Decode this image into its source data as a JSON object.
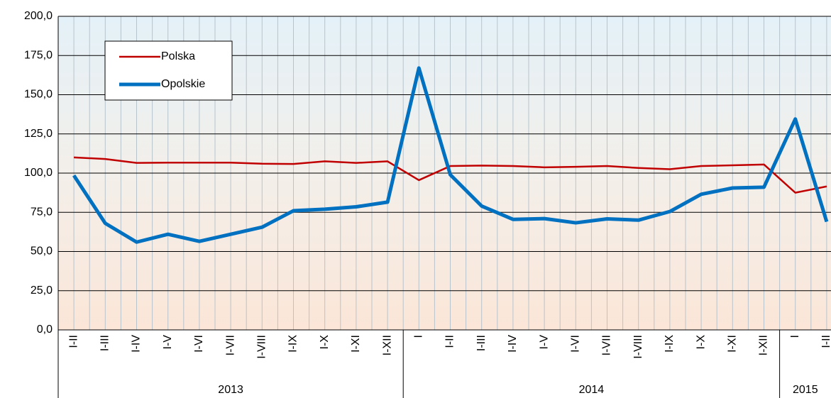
{
  "chart_data": {
    "type": "line",
    "categories": [
      "I-II",
      "I-III",
      "I-IV",
      "I-V",
      "I-VI",
      "I-VII",
      "I-VIII",
      "I-IX",
      "I-X",
      "I-XI",
      "I-XII",
      "I",
      "I-II",
      "I-III",
      "I-IV",
      "I-V",
      "I-VI",
      "I-VII",
      "I-VIII",
      "I-IX",
      "I-X",
      "I-XI",
      "I-XII",
      "I",
      "I-II"
    ],
    "years": [
      "2013",
      "2014",
      "2015"
    ],
    "series": [
      {
        "name": "Polska",
        "color": "#c00000",
        "values": [
          110,
          109,
          106.5,
          106.7,
          106.7,
          106.7,
          106,
          105.8,
          107.5,
          106.5,
          107.5,
          95.5,
          104.5,
          104.8,
          104.5,
          103.7,
          104,
          104.5,
          103.3,
          102.5,
          104.5,
          105,
          105.5,
          87.5,
          91.5
        ]
      },
      {
        "name": "Opolskie",
        "color": "#0070c0",
        "values": [
          98.5,
          68,
          56,
          61,
          56.5,
          61,
          65.5,
          76,
          77,
          78.5,
          81.5,
          167,
          99,
          79,
          70.5,
          71,
          68.3,
          70.8,
          70,
          75.5,
          86.5,
          90.5,
          91,
          134.5,
          69
        ]
      }
    ],
    "ylim": [
      0,
      200
    ],
    "yticks": [
      {
        "value": 0,
        "label": "0,0"
      },
      {
        "value": 25,
        "label": "25,0"
      },
      {
        "value": 50,
        "label": "50,0"
      },
      {
        "value": 75,
        "label": "75,0"
      },
      {
        "value": 100,
        "label": "100,0"
      },
      {
        "value": 125,
        "label": "125,0"
      },
      {
        "value": 150,
        "label": "150,0"
      },
      {
        "value": 175,
        "label": "175,0"
      },
      {
        "value": 200,
        "label": "200,0"
      }
    ],
    "grid": true
  }
}
